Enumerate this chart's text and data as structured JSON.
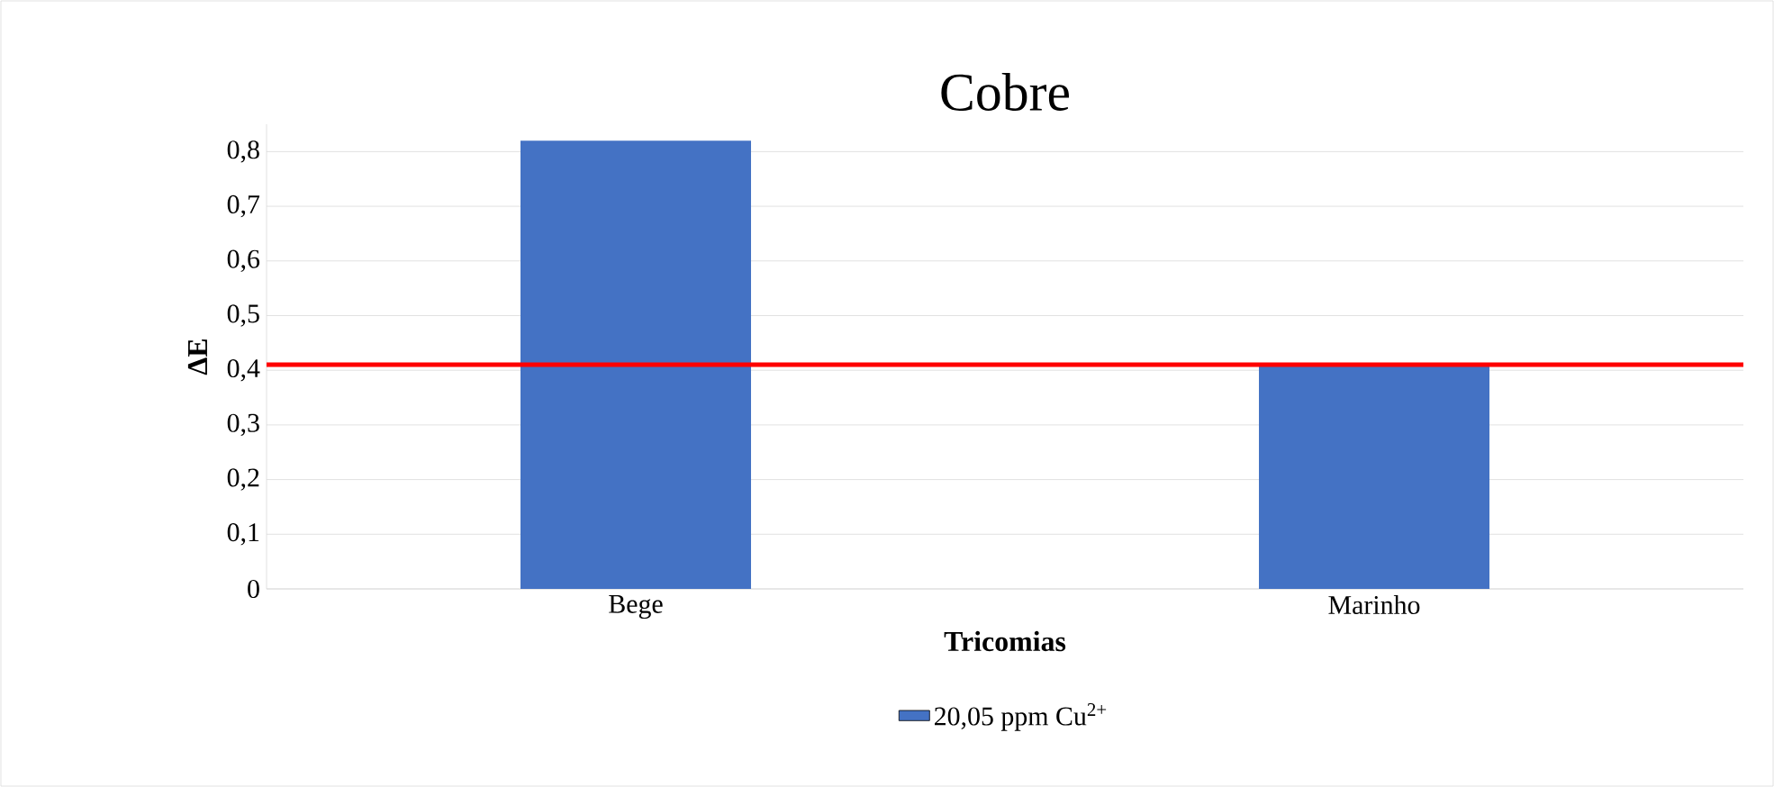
{
  "chart_data": {
    "type": "bar",
    "title": "Cobre",
    "xlabel": "Tricomias",
    "ylabel": "ΔE",
    "categories": [
      "Bege",
      "Marinho"
    ],
    "series": [
      {
        "name": "20,05 ppm Cu$^{2+}$",
        "color": "#4472c4",
        "values": [
          0.82,
          0.41
        ]
      }
    ],
    "ylim": [
      0,
      0.85
    ],
    "yticks": [
      0,
      {
        "value": 0.1,
        "label": "0,1"
      },
      {
        "value": 0.2,
        "label": "0,2"
      },
      {
        "value": 0.3,
        "label": "0,3"
      },
      {
        "value": 0.4,
        "label": "0,4"
      },
      {
        "value": 0.5,
        "label": "0,5"
      },
      {
        "value": 0.6,
        "label": "0,6"
      },
      {
        "value": 0.7,
        "label": "0,7"
      },
      {
        "value": 0.8,
        "label": "0,8"
      }
    ],
    "ref_lines": [
      {
        "axis": "y",
        "value": 0.41,
        "color": "#ff0000"
      }
    ],
    "grid": "y",
    "legend": "bottom"
  }
}
